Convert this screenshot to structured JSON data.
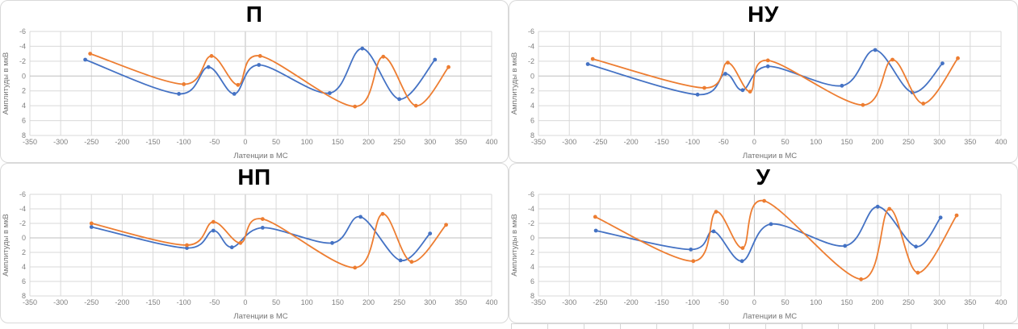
{
  "page": {
    "background": "#FFFFFF",
    "description_colors": {
      "series_blue": "#4472C4",
      "series_orange": "#ED7D31",
      "gridline": "#D9D9D9",
      "axis_line": "#BFBFBF",
      "tick_text": "#7F7F7F",
      "axis_title_text": "#757575",
      "chart_title_text": "#000000",
      "panel_border": "#D9D9D9"
    }
  },
  "chart_data": [
    {
      "type": "line",
      "title": "П",
      "xlabel": "Латенции в МС",
      "ylabel": "Амплитуды в мкВ",
      "xlim": [
        -350,
        400
      ],
      "ylim": [
        -6,
        8
      ],
      "xticks": [
        -350,
        -300,
        -250,
        -200,
        -150,
        -100,
        -50,
        0,
        50,
        100,
        150,
        200,
        250,
        300,
        350,
        400
      ],
      "yticks": [
        -6,
        -4,
        -2,
        0,
        2,
        4,
        6,
        8
      ],
      "y_axis_direction": "down",
      "grid": true,
      "legend": "none",
      "smooth": true,
      "series": [
        {
          "name": "series-1",
          "color": "#4472C4",
          "points": [
            [
              -260,
              -2.2
            ],
            [
              -108,
              2.4
            ],
            [
              -60,
              -1.2
            ],
            [
              -18,
              2.4
            ],
            [
              22,
              -1.5
            ],
            [
              137,
              2.3
            ],
            [
              190,
              -3.7
            ],
            [
              250,
              3.1
            ],
            [
              308,
              -2.2
            ]
          ]
        },
        {
          "name": "series-2",
          "color": "#ED7D31",
          "points": [
            [
              -252,
              -3.0
            ],
            [
              -100,
              1.1
            ],
            [
              -55,
              -2.7
            ],
            [
              -12,
              1.2
            ],
            [
              24,
              -2.7
            ],
            [
              178,
              4.1
            ],
            [
              224,
              -2.6
            ],
            [
              277,
              4.0
            ],
            [
              330,
              -1.2
            ]
          ]
        }
      ]
    },
    {
      "type": "line",
      "title": "НУ",
      "xlabel": "Латенции в МС",
      "ylabel": "Амплитуды в мкВ",
      "xlim": [
        -350,
        400
      ],
      "ylim": [
        -6,
        8
      ],
      "xticks": [
        -350,
        -300,
        -250,
        -200,
        -150,
        -100,
        -50,
        0,
        50,
        100,
        150,
        200,
        250,
        300,
        350,
        400
      ],
      "yticks": [
        -6,
        -4,
        -2,
        0,
        2,
        4,
        6,
        8
      ],
      "y_axis_direction": "down",
      "grid": true,
      "legend": "none",
      "smooth": true,
      "series": [
        {
          "name": "series-1",
          "color": "#4472C4",
          "points": [
            [
              -270,
              -1.6
            ],
            [
              -92,
              2.5
            ],
            [
              -47,
              -0.3
            ],
            [
              -19,
              1.9
            ],
            [
              22,
              -1.3
            ],
            [
              142,
              1.3
            ],
            [
              196,
              -3.5
            ],
            [
              256,
              2.2
            ],
            [
              305,
              -1.7
            ]
          ]
        },
        {
          "name": "series-2",
          "color": "#ED7D31",
          "points": [
            [
              -262,
              -2.3
            ],
            [
              -81,
              1.6
            ],
            [
              -43,
              -1.8
            ],
            [
              -7,
              2.1
            ],
            [
              22,
              -2.1
            ],
            [
              176,
              3.9
            ],
            [
              224,
              -2.2
            ],
            [
              274,
              3.7
            ],
            [
              330,
              -2.4
            ]
          ]
        }
      ]
    },
    {
      "type": "line",
      "title": "НП",
      "xlabel": "Латенции в МС",
      "ylabel": "Амплитуды в мкВ",
      "xlim": [
        -350,
        400
      ],
      "ylim": [
        -6,
        8
      ],
      "xticks": [
        -350,
        -300,
        -250,
        -200,
        -150,
        -100,
        -50,
        0,
        50,
        100,
        150,
        200,
        250,
        300,
        350,
        400
      ],
      "yticks": [
        -6,
        -4,
        -2,
        0,
        2,
        4,
        6,
        8
      ],
      "y_axis_direction": "down",
      "grid": true,
      "legend": "none",
      "smooth": true,
      "series": [
        {
          "name": "series-1",
          "color": "#4472C4",
          "points": [
            [
              -250,
              -1.5
            ],
            [
              -95,
              1.4
            ],
            [
              -52,
              -1.0
            ],
            [
              -22,
              1.3
            ],
            [
              28,
              -1.4
            ],
            [
              141,
              0.7
            ],
            [
              187,
              -2.9
            ],
            [
              252,
              3.1
            ],
            [
              300,
              -0.6
            ]
          ]
        },
        {
          "name": "series-2",
          "color": "#ED7D31",
          "points": [
            [
              -250,
              -2.0
            ],
            [
              -95,
              1.0
            ],
            [
              -52,
              -2.2
            ],
            [
              -8,
              0.7
            ],
            [
              28,
              -2.6
            ],
            [
              178,
              4.1
            ],
            [
              223,
              -3.3
            ],
            [
              270,
              3.3
            ],
            [
              326,
              -1.8
            ]
          ]
        }
      ]
    },
    {
      "type": "line",
      "title": "У",
      "xlabel": "Латенции в МС",
      "ylabel": "Амплитуды в мкВ",
      "xlim": [
        -350,
        400
      ],
      "ylim": [
        -6,
        8
      ],
      "xticks": [
        -350,
        -300,
        -250,
        -200,
        -150,
        -100,
        -50,
        0,
        50,
        100,
        150,
        200,
        250,
        300,
        350,
        400
      ],
      "yticks": [
        -6,
        -4,
        -2,
        0,
        2,
        4,
        6,
        8
      ],
      "y_axis_direction": "down",
      "grid": true,
      "legend": "none",
      "smooth": true,
      "series": [
        {
          "name": "series-1",
          "color": "#4472C4",
          "points": [
            [
              -257,
              -1.0
            ],
            [
              -103,
              1.6
            ],
            [
              -66,
              -0.9
            ],
            [
              -20,
              3.2
            ],
            [
              27,
              -1.9
            ],
            [
              147,
              1.1
            ],
            [
              200,
              -4.3
            ],
            [
              262,
              1.2
            ],
            [
              302,
              -2.8
            ]
          ]
        },
        {
          "name": "series-2",
          "color": "#ED7D31",
          "points": [
            [
              -258,
              -2.9
            ],
            [
              -99,
              3.2
            ],
            [
              -62,
              -3.6
            ],
            [
              -19,
              1.4
            ],
            [
              16,
              -5.1
            ],
            [
              173,
              5.7
            ],
            [
              219,
              -4.0
            ],
            [
              265,
              4.8
            ],
            [
              328,
              -3.1
            ]
          ]
        }
      ]
    }
  ]
}
